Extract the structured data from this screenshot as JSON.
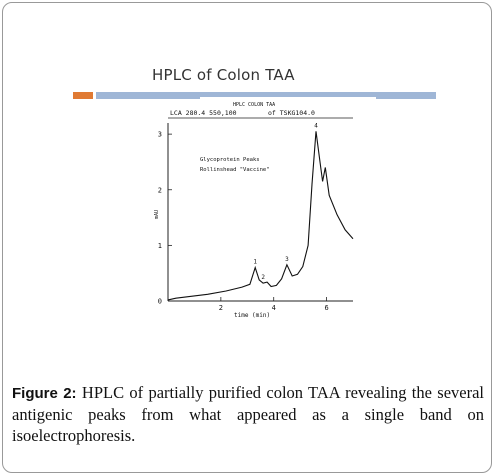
{
  "slide": {
    "title": "HPLC of Colon TAA"
  },
  "chart_data": {
    "type": "line",
    "header_label": "HPLC COLON TAA",
    "settings_text": "LCA  280.4   550,100",
    "column_text": "of  TSKG104.0",
    "annotation_line1": "Glycoprotein Peaks",
    "annotation_line2": "Rollinshead \"Vaccine\"",
    "xlabel": "time (min)",
    "ylabel": "mAU",
    "xlim": [
      0,
      7
    ],
    "ylim": [
      0,
      3.2
    ],
    "xticks": [
      2,
      4,
      6
    ],
    "yticks": [
      0,
      1,
      2,
      3
    ],
    "x": [
      0,
      0.3,
      0.8,
      1.5,
      2.2,
      2.8,
      3.1,
      3.3,
      3.45,
      3.6,
      3.75,
      3.9,
      4.1,
      4.3,
      4.5,
      4.7,
      4.9,
      5.1,
      5.3,
      5.45,
      5.6,
      5.75,
      5.85,
      5.95,
      6.1,
      6.4,
      6.7,
      7.0
    ],
    "y": [
      0.02,
      0.05,
      0.08,
      0.12,
      0.18,
      0.25,
      0.3,
      0.6,
      0.38,
      0.32,
      0.34,
      0.26,
      0.28,
      0.4,
      0.65,
      0.45,
      0.48,
      0.62,
      1.0,
      2.1,
      3.05,
      2.5,
      2.15,
      2.4,
      1.9,
      1.55,
      1.28,
      1.12
    ],
    "peak_labels": [
      {
        "label": "1",
        "x": 3.3,
        "y": 0.6
      },
      {
        "label": "2",
        "x": 3.6,
        "y": 0.32
      },
      {
        "label": "3",
        "x": 4.5,
        "y": 0.65
      },
      {
        "label": "4",
        "x": 5.6,
        "y": 3.05
      }
    ]
  },
  "caption": {
    "label": "Figure 2:",
    "text": " HPLC of partially purified colon TAA revealing the several antigenic peaks from what appeared as a single band on isoelectrophoresis."
  }
}
